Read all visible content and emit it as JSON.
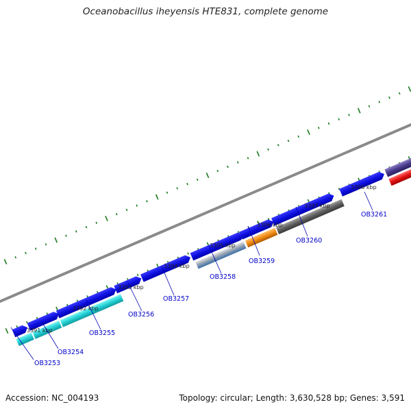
{
  "title": "Oceanobacillus iheyensis HTE831, complete genome",
  "footer": {
    "accession": "Accession: NC_004193",
    "summary": "Topology: circular; Length: 3,630,528 bp; Genes: 3,591"
  },
  "colors": {
    "backbone": "#8a8a8a",
    "tick": "#1a7a1a",
    "forward_gene": "#1414e6",
    "label": "#0000c8"
  },
  "kbp_labels": [
    "3391 kbp",
    "3392 kbp",
    "3393 kbp",
    "3394 kbp",
    "3395 kbp",
    "3396 kbp",
    "3397 kbp",
    "3398 kbp"
  ],
  "gene_labels": [
    "OB3253",
    "OB3254",
    "OB3255",
    "OB3256",
    "OB3257",
    "OB3258",
    "OB3259",
    "OB3260",
    "OB3261"
  ],
  "feature_colors": {
    "OB3253": "#19e6ee",
    "OB3254": "#19dede",
    "OB3255": "#22d0d4",
    "OB3258": "#5a8cc8",
    "OB3259": "#f08c14",
    "OB3260": "#5f5f5f",
    "extra_red": "#e61414",
    "extra_purple": "#4a3a8c"
  }
}
